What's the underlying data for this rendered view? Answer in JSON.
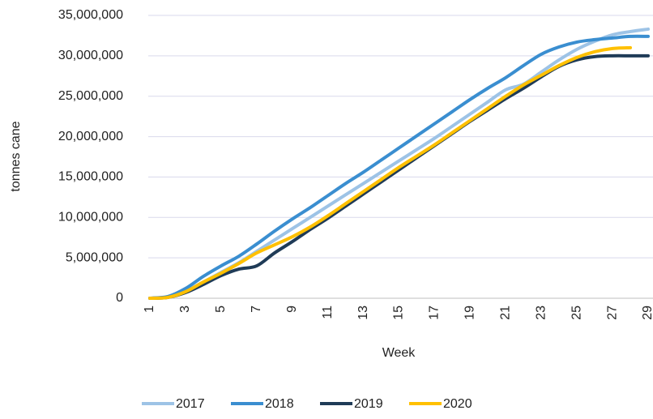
{
  "chart_data": {
    "type": "line",
    "y_label": "tonnes cane",
    "x_label": "Week",
    "categories": [
      1,
      null,
      3,
      null,
      5,
      null,
      7,
      null,
      9,
      null,
      11,
      null,
      13,
      null,
      15,
      null,
      17,
      null,
      19,
      null,
      21,
      null,
      23,
      null,
      25,
      null,
      27,
      null,
      29
    ],
    "ylim": [
      0,
      35000000
    ],
    "yticks": [
      0,
      {
        "value": 5000000,
        "label": "5,000,000"
      },
      {
        "value": 10000000,
        "label": "10,000,000"
      },
      {
        "value": 15000000,
        "label": "15,000,000"
      },
      {
        "value": 20000000,
        "label": "20,000,000"
      },
      {
        "value": 25000000,
        "label": "25,000,000"
      },
      {
        "value": 30000000,
        "label": "30,000,000"
      },
      {
        "value": 35000000,
        "label": "35,000,000"
      }
    ],
    "grid": true,
    "legend": "bottom",
    "series": [
      {
        "name": "2017",
        "color": "#9dc3e6",
        "values": [
          0,
          200000,
          900000,
          2000000,
          3200000,
          4400000,
          5800000,
          7200000,
          8600000,
          10000000,
          11400000,
          12800000,
          14200000,
          15600000,
          17000000,
          18400000,
          19800000,
          21300000,
          22800000,
          24300000,
          25800000,
          26500000,
          28000000,
          29500000,
          30800000,
          31800000,
          32600000,
          33000000,
          33300000
        ]
      },
      {
        "name": "2018",
        "color": "#3a8ed0",
        "values": [
          0,
          200000,
          1200000,
          2700000,
          4000000,
          5200000,
          6700000,
          8300000,
          9800000,
          11200000,
          12700000,
          14200000,
          15600000,
          17100000,
          18600000,
          20100000,
          21600000,
          23100000,
          24600000,
          26000000,
          27300000,
          28800000,
          30200000,
          31100000,
          31700000,
          32000000,
          32200000,
          32400000,
          32400000
        ]
      },
      {
        "name": "2019",
        "color": "#1f3b57",
        "values": [
          0,
          100000,
          700000,
          1700000,
          2800000,
          3600000,
          4000000,
          5600000,
          7000000,
          8500000,
          9900000,
          11400000,
          12900000,
          14400000,
          15900000,
          17400000,
          18900000,
          20400000,
          21900000,
          23300000,
          24700000,
          26000000,
          27400000,
          28700000,
          29500000,
          29900000,
          30000000,
          30000000,
          30000000
        ]
      },
      {
        "name": "2020",
        "color": "#ffc000",
        "values": [
          0,
          100000,
          800000,
          2000000,
          3100000,
          4300000,
          5600000,
          6600000,
          7600000,
          8800000,
          10200000,
          11700000,
          13200000,
          14700000,
          16200000,
          17600000,
          19000000,
          20500000,
          22000000,
          23500000,
          25000000,
          26400000,
          27600000,
          28800000,
          29800000,
          30500000,
          30900000,
          31000000,
          null
        ]
      }
    ]
  }
}
